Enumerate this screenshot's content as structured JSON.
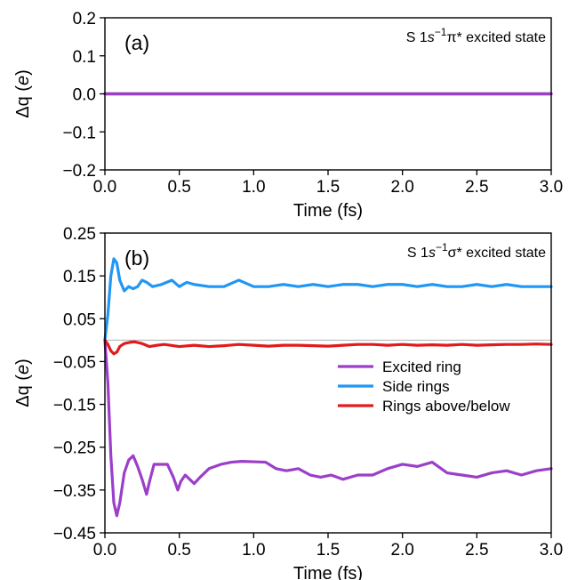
{
  "chart_data": [
    {
      "type": "line",
      "panel_label": "(a)",
      "state_label": "S 1s⁻¹π* excited state",
      "xlabel": "Time (fs)",
      "ylabel": "Δq (e)",
      "xlim": [
        0,
        3
      ],
      "ylim": [
        -0.2,
        0.2
      ],
      "xticks": [
        "0.0",
        "0.5",
        "1.0",
        "1.5",
        "2.0",
        "2.5",
        "3.0"
      ],
      "yticks": [
        "0.2",
        "0.1",
        "0.0",
        "−0.1",
        "−0.2"
      ],
      "grid": false,
      "series": [
        {
          "color": "#2196f3",
          "x": [
            0,
            3.0
          ],
          "y": [
            0,
            0
          ]
        },
        {
          "color": "#e31a1c",
          "x": [
            0,
            3.0
          ],
          "y": [
            0,
            0
          ]
        },
        {
          "color": "#9b3fc9",
          "x": [
            0,
            3.0
          ],
          "y": [
            0,
            0
          ]
        }
      ]
    },
    {
      "type": "line",
      "panel_label": "(b)",
      "state_label": "S 1s⁻¹σ* excited state",
      "xlabel": "Time (fs)",
      "ylabel": "Δq (e)",
      "xlim": [
        0,
        3
      ],
      "ylim": [
        -0.45,
        0.25
      ],
      "xticks": [
        "0.0",
        "0.5",
        "1.0",
        "1.5",
        "2.0",
        "2.5",
        "3.0"
      ],
      "yticks": [
        "0.25",
        "0.15",
        "0.05",
        "−0.05",
        "−0.15",
        "−0.25",
        "−0.35",
        "−0.45"
      ],
      "grid": false,
      "reference_line": 0,
      "legend_position": "center-right",
      "series": [
        {
          "name": "Excited ring",
          "color": "#9b3fc9",
          "x": [
            0,
            0.02,
            0.04,
            0.06,
            0.08,
            0.1,
            0.13,
            0.16,
            0.19,
            0.22,
            0.25,
            0.28,
            0.3,
            0.33,
            0.37,
            0.42,
            0.46,
            0.49,
            0.51,
            0.54,
            0.57,
            0.6,
            0.64,
            0.7,
            0.78,
            0.85,
            0.92,
            1.0,
            1.08,
            1.15,
            1.22,
            1.3,
            1.38,
            1.45,
            1.52,
            1.6,
            1.7,
            1.8,
            1.9,
            2.0,
            2.1,
            2.2,
            2.3,
            2.4,
            2.5,
            2.6,
            2.7,
            2.8,
            2.9,
            3.0
          ],
          "y": [
            0.0,
            -0.1,
            -0.27,
            -0.38,
            -0.41,
            -0.38,
            -0.31,
            -0.28,
            -0.27,
            -0.295,
            -0.325,
            -0.36,
            -0.33,
            -0.29,
            -0.29,
            -0.29,
            -0.32,
            -0.35,
            -0.33,
            -0.315,
            -0.325,
            -0.335,
            -0.32,
            -0.3,
            -0.29,
            -0.285,
            -0.283,
            -0.284,
            -0.285,
            -0.3,
            -0.305,
            -0.3,
            -0.315,
            -0.32,
            -0.315,
            -0.325,
            -0.315,
            -0.315,
            -0.3,
            -0.29,
            -0.295,
            -0.285,
            -0.31,
            -0.315,
            -0.32,
            -0.31,
            -0.305,
            -0.315,
            -0.305,
            -0.3
          ]
        },
        {
          "name": "Side rings",
          "color": "#2196f3",
          "x": [
            0,
            0.02,
            0.04,
            0.06,
            0.08,
            0.1,
            0.13,
            0.16,
            0.19,
            0.22,
            0.25,
            0.28,
            0.32,
            0.38,
            0.45,
            0.5,
            0.55,
            0.6,
            0.7,
            0.8,
            0.9,
            1.0,
            1.1,
            1.2,
            1.3,
            1.4,
            1.5,
            1.6,
            1.7,
            1.8,
            1.9,
            2.0,
            2.1,
            2.2,
            2.3,
            2.4,
            2.5,
            2.6,
            2.7,
            2.8,
            2.9,
            3.0
          ],
          "y": [
            0.0,
            0.06,
            0.15,
            0.19,
            0.18,
            0.14,
            0.115,
            0.125,
            0.12,
            0.125,
            0.14,
            0.135,
            0.125,
            0.13,
            0.14,
            0.125,
            0.135,
            0.13,
            0.125,
            0.125,
            0.14,
            0.125,
            0.125,
            0.13,
            0.125,
            0.13,
            0.125,
            0.13,
            0.13,
            0.125,
            0.13,
            0.13,
            0.125,
            0.13,
            0.125,
            0.125,
            0.13,
            0.125,
            0.13,
            0.125,
            0.125,
            0.125
          ]
        },
        {
          "name": "Rings above/below",
          "color": "#e31a1c",
          "x": [
            0,
            0.02,
            0.04,
            0.06,
            0.08,
            0.1,
            0.13,
            0.17,
            0.2,
            0.25,
            0.3,
            0.35,
            0.4,
            0.5,
            0.6,
            0.7,
            0.8,
            0.9,
            1.0,
            1.1,
            1.2,
            1.3,
            1.4,
            1.5,
            1.6,
            1.7,
            1.8,
            1.9,
            2.0,
            2.1,
            2.2,
            2.3,
            2.4,
            2.5,
            2.6,
            2.7,
            2.8,
            2.9,
            3.0
          ],
          "y": [
            0.0,
            -0.01,
            -0.025,
            -0.032,
            -0.028,
            -0.015,
            -0.008,
            -0.005,
            -0.004,
            -0.008,
            -0.015,
            -0.012,
            -0.01,
            -0.015,
            -0.012,
            -0.015,
            -0.013,
            -0.01,
            -0.012,
            -0.014,
            -0.012,
            -0.012,
            -0.013,
            -0.014,
            -0.012,
            -0.01,
            -0.01,
            -0.012,
            -0.01,
            -0.012,
            -0.011,
            -0.012,
            -0.01,
            -0.012,
            -0.011,
            -0.01,
            -0.01,
            -0.009,
            -0.01
          ]
        }
      ]
    }
  ]
}
